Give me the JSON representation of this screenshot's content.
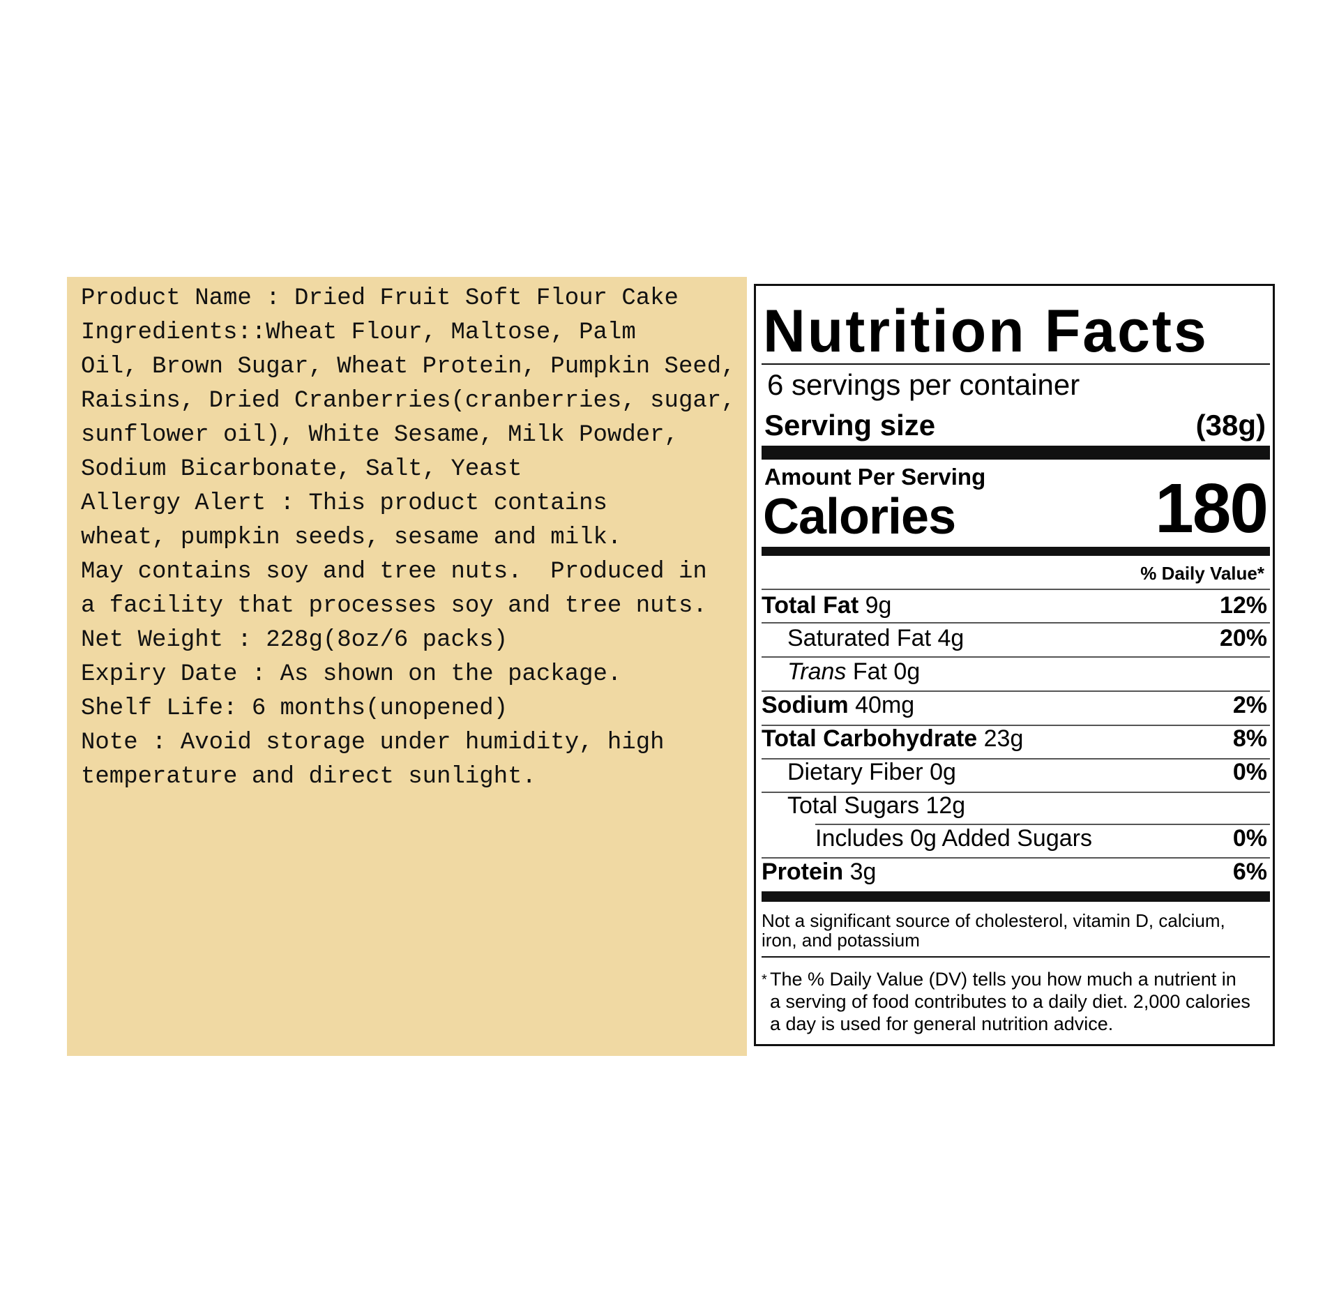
{
  "info_panel": {
    "background": "#f0d9a3",
    "lines": [
      "Product Name : Dried Fruit Soft Flour Cake",
      "Ingredients::Wheat Flour, Maltose, Palm",
      "Oil, Brown Sugar, Wheat Protein, Pumpkin Seed,",
      "Raisins, Dried Cranberries(cranberries, sugar,",
      "sunflower oil), White Sesame, Milk Powder,",
      "Sodium Bicarbonate, Salt, Yeast",
      "Allergy Alert : This product contains",
      "wheat, pumpkin seeds, sesame and milk.",
      "May contains soy and tree nuts.  Produced in",
      "a facility that processes soy and tree nuts.",
      "Net Weight : 228g(8oz/6 packs)",
      "Expiry Date : As shown on the package.",
      "Shelf Life: 6 months(unopened)",
      "Note : Avoid storage under humidity, high",
      "temperature and direct sunlight."
    ]
  },
  "nutrition": {
    "title": "Nutrition Facts",
    "servings": "6 servings per container",
    "serving_size_label": "Serving size",
    "serving_size_value": "(38g)",
    "amount_per_serving": "Amount Per Serving",
    "calories_label": "Calories",
    "calories_value": "180",
    "daily_value_header": "% Daily Value*",
    "rows": [
      {
        "label": "Total Fat",
        "amount": "9g",
        "dv": "12%"
      },
      {
        "label": "Saturated Fat",
        "amount": "4g",
        "dv": "20%"
      },
      {
        "label": "Trans",
        "amount": "Fat 0g",
        "dv": ""
      },
      {
        "label": "Sodium",
        "amount": "40mg",
        "dv": "2%"
      },
      {
        "label": "Total Carbohydrate",
        "amount": "23g",
        "dv": "8%"
      },
      {
        "label": "Dietary Fiber",
        "amount": "0g",
        "dv": "0%"
      },
      {
        "label": "Total Sugars",
        "amount": "12g",
        "dv": ""
      },
      {
        "label": "Includes 0g Added Sugars",
        "amount": "",
        "dv": "0%"
      },
      {
        "label": "Protein",
        "amount": "3g",
        "dv": "6%"
      }
    ],
    "not_significant": "Not a significant source of cholesterol, vitamin D, calcium, iron, and potassium",
    "footnote_star": "*",
    "footnote": "The % Daily Value (DV) tells you how much a nutrient in a serving of food contributes to a daily diet. 2,000 calories a day is used for general nutrition advice."
  }
}
